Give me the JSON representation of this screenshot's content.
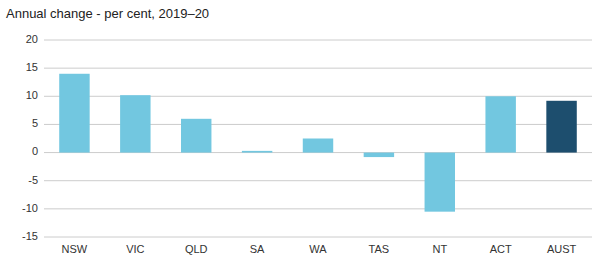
{
  "chart_data": {
    "type": "bar",
    "title": "Annual change - per cent, 2019–20",
    "categories": [
      "NSW",
      "VIC",
      "QLD",
      "SA",
      "WA",
      "TAS",
      "NT",
      "ACT",
      "AUST"
    ],
    "values": [
      14.0,
      10.2,
      6.0,
      0.3,
      2.5,
      -0.8,
      -10.5,
      10.0,
      9.2
    ],
    "colors": [
      "#72c7e0",
      "#72c7e0",
      "#72c7e0",
      "#72c7e0",
      "#72c7e0",
      "#72c7e0",
      "#72c7e0",
      "#72c7e0",
      "#1d4e6e"
    ],
    "ylim": [
      -15,
      20
    ],
    "yticks": [
      -15,
      -10,
      -5,
      0,
      5,
      10,
      15,
      20
    ],
    "grid": true
  }
}
